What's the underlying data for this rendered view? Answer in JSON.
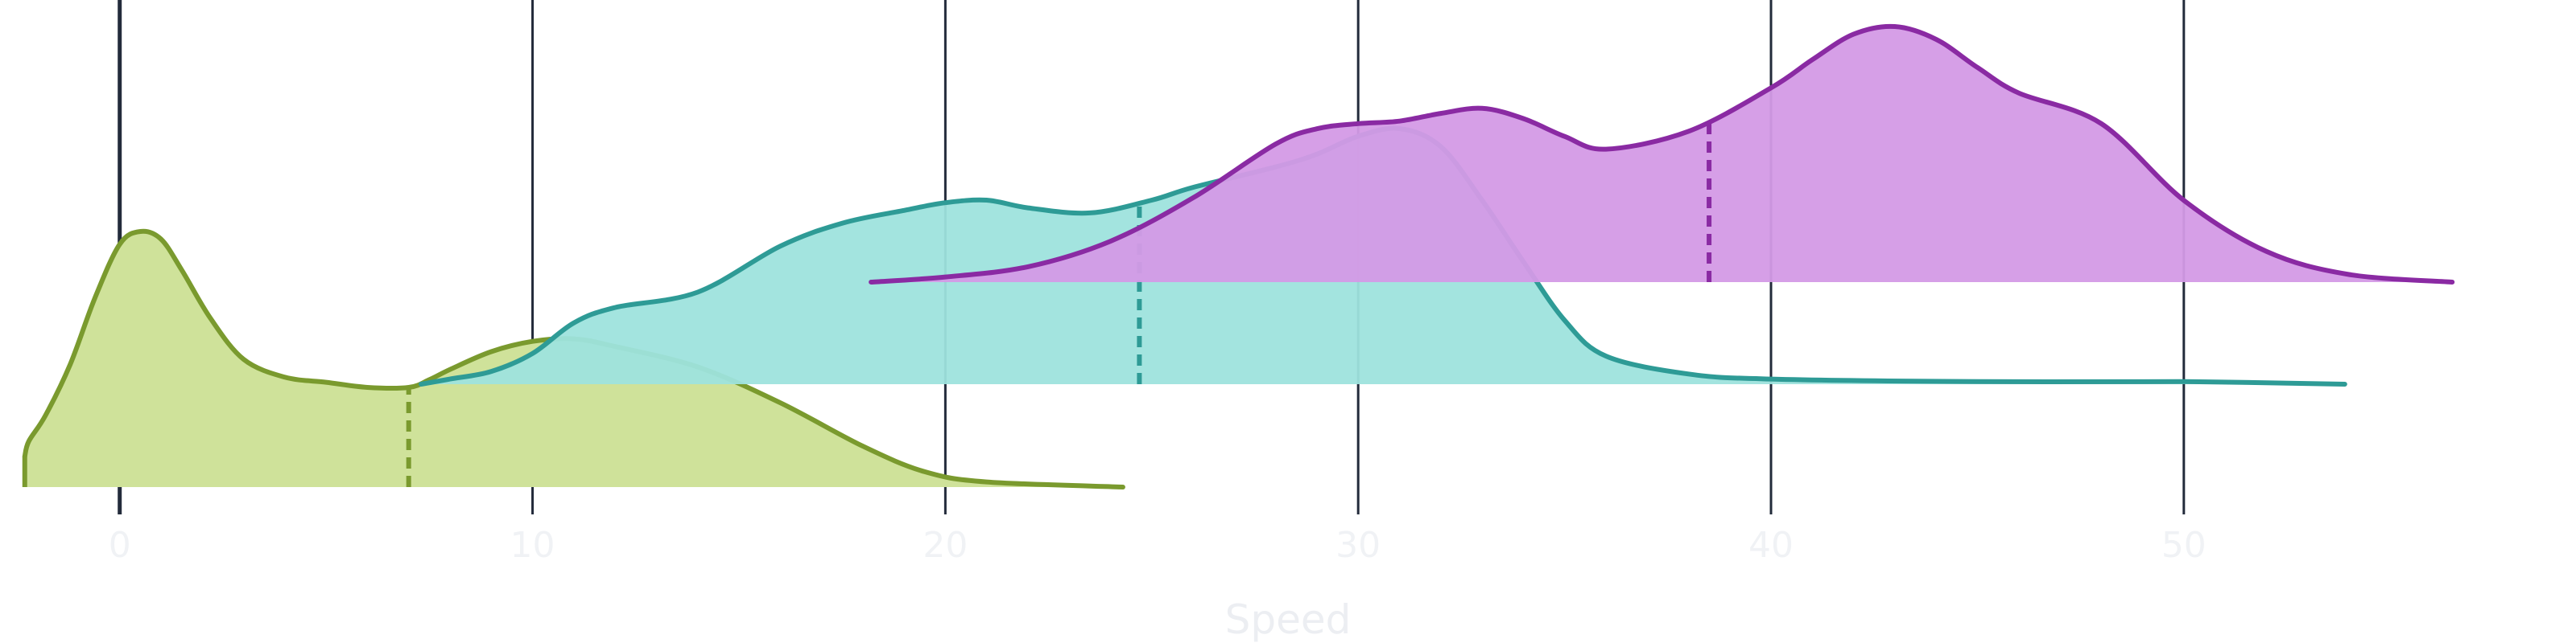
{
  "chart_data": {
    "type": "area",
    "subtype": "ridgeline-density",
    "title": "",
    "xlabel": "Speed",
    "ylabel": "",
    "xlim": [
      -2.9,
      59.5
    ],
    "xticks": [
      0,
      10,
      20,
      30,
      40,
      50,
      60
    ],
    "xtick_labels": [
      "0",
      "10",
      "20",
      "30",
      "40",
      "50",
      ""
    ],
    "grid": "vertical",
    "legend": "none",
    "series": [
      {
        "color": "#7a9a2e",
        "fill": "#cfe29a",
        "x": [
          -2.3,
          -2.2,
          -1.8,
          -1.2,
          -0.6,
          0,
          0.5,
          1,
          1.5,
          2.2,
          3,
          4,
          5,
          6,
          7,
          7.5,
          8,
          9,
          10,
          11,
          12,
          14,
          16,
          18,
          19.5,
          21,
          24.3
        ],
        "y": [
          0.12,
          0.18,
          0.28,
          0.48,
          0.74,
          0.95,
          1.0,
          0.97,
          0.85,
          0.66,
          0.5,
          0.43,
          0.41,
          0.39,
          0.39,
          0.42,
          0.46,
          0.53,
          0.57,
          0.58,
          0.55,
          0.47,
          0.33,
          0.16,
          0.06,
          0.02,
          0.0
        ],
        "median": 7.0
      },
      {
        "color": "#2e9b96",
        "fill": "#9ee3dd",
        "x": [
          7.3,
          8,
          9,
          10,
          11,
          12,
          14,
          16,
          17.5,
          19,
          20,
          21,
          22,
          23.5,
          25,
          26,
          28,
          29,
          30,
          31,
          32,
          33,
          34,
          35,
          36,
          38,
          40,
          45,
          50,
          53.9
        ],
        "y": [
          0.0,
          0.02,
          0.05,
          0.12,
          0.24,
          0.3,
          0.36,
          0.54,
          0.63,
          0.68,
          0.71,
          0.72,
          0.69,
          0.67,
          0.72,
          0.77,
          0.85,
          0.9,
          0.97,
          1.0,
          0.93,
          0.72,
          0.48,
          0.25,
          0.11,
          0.04,
          0.02,
          0.01,
          0.01,
          0.0
        ],
        "median": 24.7
      },
      {
        "color": "#8a2aa3",
        "fill": "#d49ae6",
        "x": [
          18.2,
          20,
          22,
          24,
          26,
          28,
          29,
          30,
          31,
          32,
          33,
          34,
          35,
          36,
          38,
          40,
          41,
          42,
          43,
          44,
          45,
          46,
          48,
          50,
          52,
          54,
          56.5
        ],
        "y": [
          0.0,
          0.02,
          0.06,
          0.16,
          0.33,
          0.54,
          0.6,
          0.62,
          0.63,
          0.66,
          0.68,
          0.64,
          0.57,
          0.52,
          0.59,
          0.76,
          0.87,
          0.97,
          1.0,
          0.95,
          0.84,
          0.74,
          0.62,
          0.32,
          0.12,
          0.03,
          0.0
        ],
        "median": 38.5
      }
    ]
  }
}
